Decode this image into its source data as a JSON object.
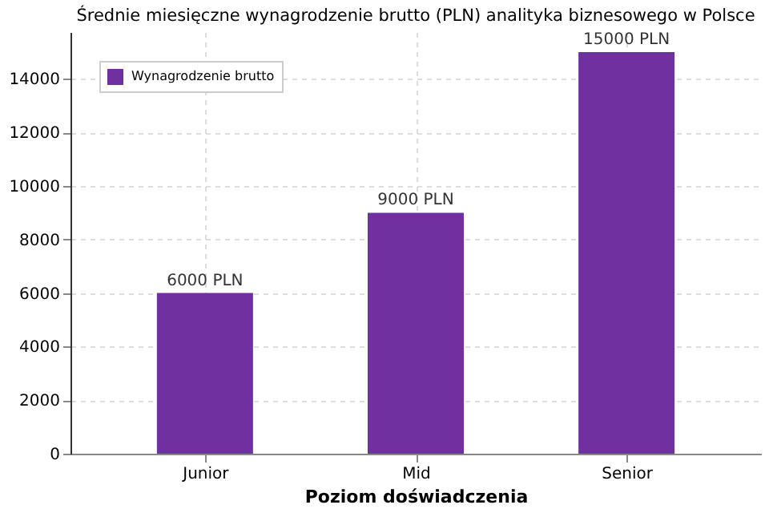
{
  "chart_data": {
    "type": "bar",
    "title": "Średnie miesięczne wynagrodzenie brutto (PLN) analityka biznesowego w Polsce",
    "xlabel": "Poziom doświadczenia",
    "categories": [
      "Junior",
      "Mid",
      "Senior"
    ],
    "series": [
      {
        "name": "Wynagrodzenie brutto",
        "color": "#7030a0",
        "values": [
          6000,
          9000,
          15000
        ]
      }
    ],
    "value_labels": [
      "6000 PLN",
      "9000 PLN",
      "15000 PLN"
    ],
    "ylim": [
      0,
      15750
    ],
    "yticks": [
      0,
      2000,
      4000,
      6000,
      8000,
      10000,
      12000,
      14000
    ],
    "grid": true,
    "legend": "top left"
  }
}
